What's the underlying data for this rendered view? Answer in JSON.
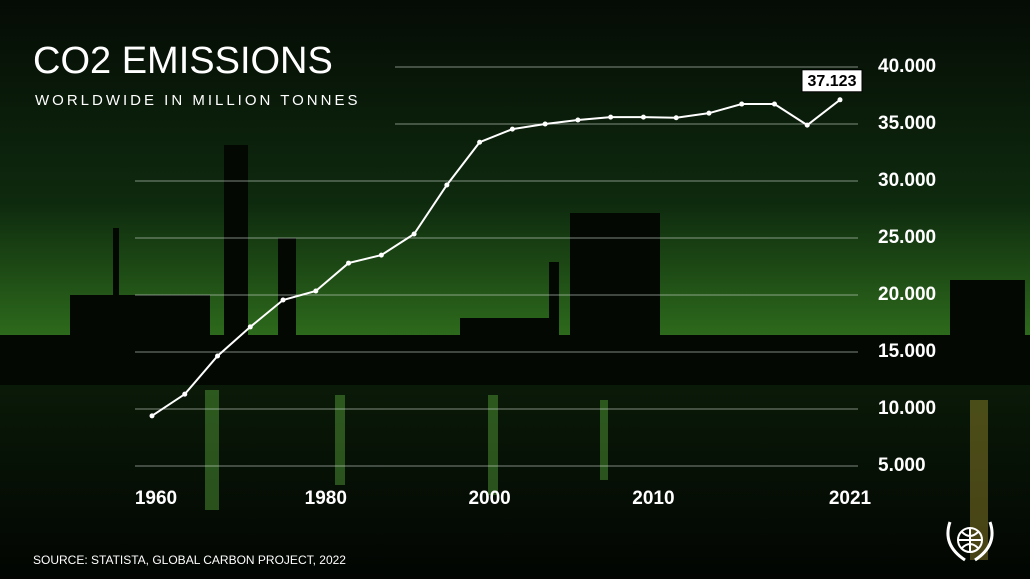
{
  "chart_data": {
    "type": "line",
    "title": "CO2 EMISSIONS",
    "subtitle": "WORLDWIDE IN MILLION TONNES",
    "source": "SOURCE: STATISTA, GLOBAL CARBON PROJECT, 2022",
    "categories": [
      "1960",
      null,
      null,
      null,
      null,
      "1980",
      null,
      null,
      null,
      null,
      "2000",
      null,
      null,
      null,
      null,
      "2010",
      null,
      null,
      null,
      null,
      null,
      "2021"
    ],
    "series": [
      {
        "name": "CO2 emissions",
        "color": "#ffffff",
        "values": [
          9400,
          11300,
          14650,
          17200,
          19560,
          20350,
          22800,
          23500,
          25350,
          29650,
          33400,
          34550,
          35000,
          35350,
          35600,
          35600,
          35550,
          35950,
          36750,
          36750,
          34900,
          37123
        ],
        "value_labels": [
          null,
          null,
          null,
          null,
          null,
          null,
          null,
          null,
          null,
          null,
          null,
          null,
          null,
          null,
          null,
          null,
          null,
          null,
          null,
          null,
          null,
          "37.123"
        ]
      }
    ],
    "ylim": [
      5000,
      40000
    ],
    "yticks": [
      {
        "value": 5000,
        "label": "5.000"
      },
      {
        "value": 10000,
        "label": "10.000"
      },
      {
        "value": 15000,
        "label": "15.000"
      },
      {
        "value": 20000,
        "label": "20.000"
      },
      {
        "value": 25000,
        "label": "25.000"
      },
      {
        "value": 30000,
        "label": "30.000"
      },
      {
        "value": 35000,
        "label": "35.000"
      },
      {
        "value": 40000,
        "label": "40.000"
      }
    ],
    "grid": true
  }
}
